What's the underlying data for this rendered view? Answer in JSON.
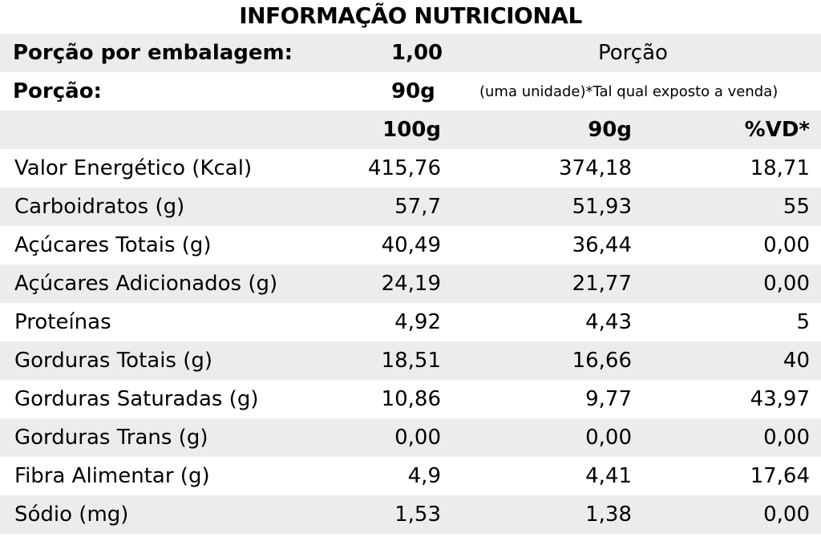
{
  "title": "INFORMAÇÃO NUTRICIONAL",
  "servings": {
    "per_package_label": "Porção por embalagem:",
    "per_package_value": "1,00",
    "portion_header": "Porção",
    "portion_label": "Porção:",
    "portion_value": "90g",
    "portion_note": "(uma unidade)*Tal qual exposto a venda)"
  },
  "columns": [
    "100g",
    "90g",
    "%VD*"
  ],
  "rows": [
    {
      "name": "Valor Energético (Kcal)",
      "v100": "415,76",
      "v90": "374,18",
      "vd": "18,71"
    },
    {
      "name": "Carboidratos (g)",
      "v100": "57,7",
      "v90": "51,93",
      "vd": "55"
    },
    {
      "name": "Açúcares Totais (g)",
      "v100": "40,49",
      "v90": "36,44",
      "vd": "0,00"
    },
    {
      "name": "Açúcares Adicionados (g)",
      "v100": "24,19",
      "v90": "21,77",
      "vd": "0,00"
    },
    {
      "name": "Proteínas",
      "v100": "4,92",
      "v90": "4,43",
      "vd": "5"
    },
    {
      "name": "Gorduras Totais (g)",
      "v100": "18,51",
      "v90": "16,66",
      "vd": "40"
    },
    {
      "name": "Gorduras Saturadas (g)",
      "v100": "10,86",
      "v90": "9,77",
      "vd": "43,97"
    },
    {
      "name": "Gorduras Trans (g)",
      "v100": "0,00",
      "v90": "0,00",
      "vd": "0,00"
    },
    {
      "name": "Fibra Alimentar (g)",
      "v100": "4,9",
      "v90": "4,41",
      "vd": "17,64"
    },
    {
      "name": "Sódio (mg)",
      "v100": "1,53",
      "v90": "1,38",
      "vd": "0,00"
    }
  ],
  "colors": {
    "stripe": "#ececec",
    "text": "#000000",
    "background": "#ffffff"
  }
}
